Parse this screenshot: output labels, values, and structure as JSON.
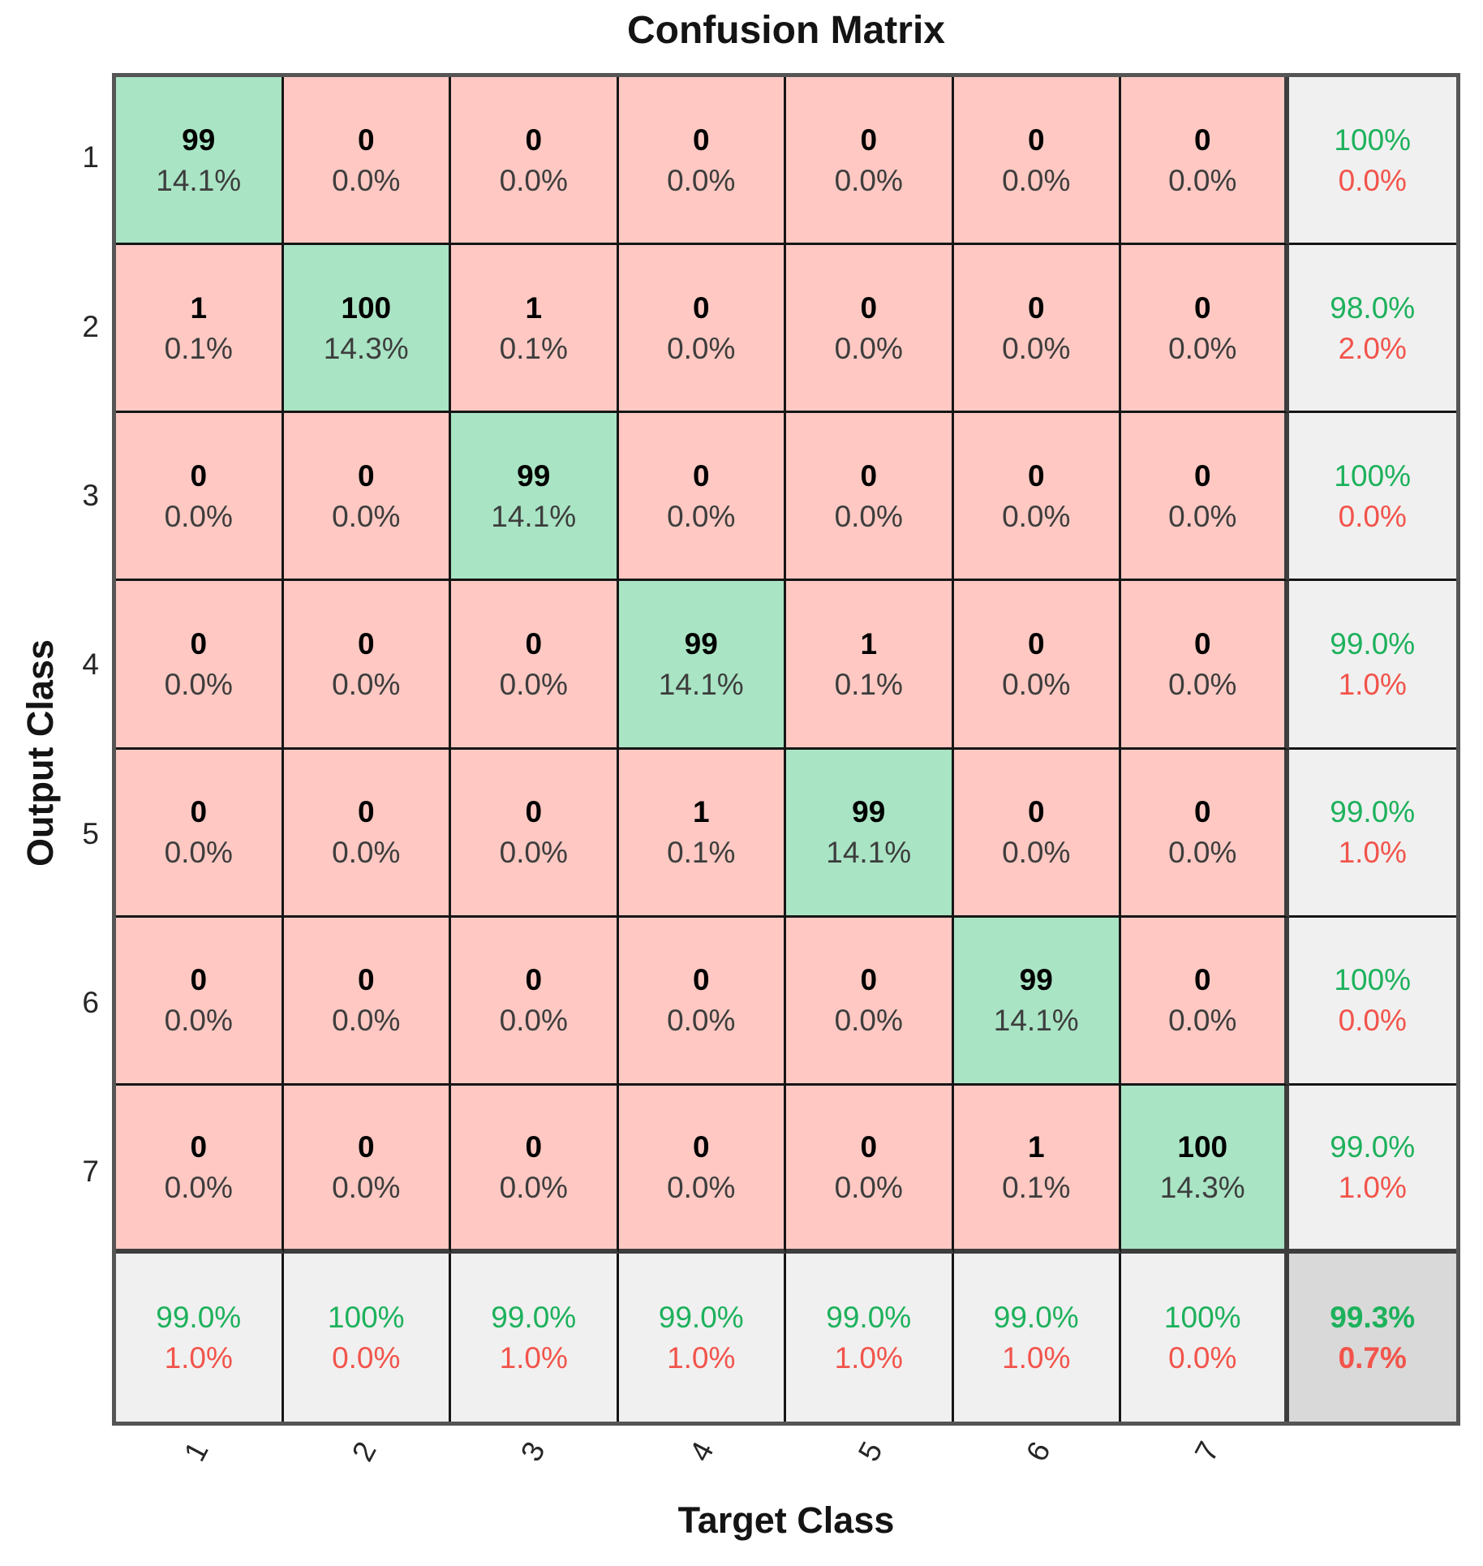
{
  "title": "Confusion Matrix",
  "x_axis": {
    "label": "Target Class",
    "ticks": [
      "1",
      "2",
      "3",
      "4",
      "5",
      "6",
      "7"
    ]
  },
  "y_axis": {
    "label": "Output Class",
    "ticks": [
      "1",
      "2",
      "3",
      "4",
      "5",
      "6",
      "7"
    ]
  },
  "colors": {
    "correct_cell_bg": "#A9E4C4",
    "incorrect_cell_bg": "#FFC8C2",
    "summary_cell_bg": "#F0F0F0",
    "total_cell_bg": "#D9D9D9",
    "good_text": "#1DB15C",
    "bad_text": "#F2544B"
  },
  "matrix": {
    "rows": [
      {
        "tick": "1",
        "cells": [
          {
            "count": "99",
            "pct": "14.1%",
            "correct": true
          },
          {
            "count": "0",
            "pct": "0.0%",
            "correct": false
          },
          {
            "count": "0",
            "pct": "0.0%",
            "correct": false
          },
          {
            "count": "0",
            "pct": "0.0%",
            "correct": false
          },
          {
            "count": "0",
            "pct": "0.0%",
            "correct": false
          },
          {
            "count": "0",
            "pct": "0.0%",
            "correct": false
          },
          {
            "count": "0",
            "pct": "0.0%",
            "correct": false
          }
        ],
        "summary": {
          "good": "100%",
          "bad": "0.0%"
        }
      },
      {
        "tick": "2",
        "cells": [
          {
            "count": "1",
            "pct": "0.1%",
            "correct": false
          },
          {
            "count": "100",
            "pct": "14.3%",
            "correct": true
          },
          {
            "count": "1",
            "pct": "0.1%",
            "correct": false
          },
          {
            "count": "0",
            "pct": "0.0%",
            "correct": false
          },
          {
            "count": "0",
            "pct": "0.0%",
            "correct": false
          },
          {
            "count": "0",
            "pct": "0.0%",
            "correct": false
          },
          {
            "count": "0",
            "pct": "0.0%",
            "correct": false
          }
        ],
        "summary": {
          "good": "98.0%",
          "bad": "2.0%"
        }
      },
      {
        "tick": "3",
        "cells": [
          {
            "count": "0",
            "pct": "0.0%",
            "correct": false
          },
          {
            "count": "0",
            "pct": "0.0%",
            "correct": false
          },
          {
            "count": "99",
            "pct": "14.1%",
            "correct": true
          },
          {
            "count": "0",
            "pct": "0.0%",
            "correct": false
          },
          {
            "count": "0",
            "pct": "0.0%",
            "correct": false
          },
          {
            "count": "0",
            "pct": "0.0%",
            "correct": false
          },
          {
            "count": "0",
            "pct": "0.0%",
            "correct": false
          }
        ],
        "summary": {
          "good": "100%",
          "bad": "0.0%"
        }
      },
      {
        "tick": "4",
        "cells": [
          {
            "count": "0",
            "pct": "0.0%",
            "correct": false
          },
          {
            "count": "0",
            "pct": "0.0%",
            "correct": false
          },
          {
            "count": "0",
            "pct": "0.0%",
            "correct": false
          },
          {
            "count": "99",
            "pct": "14.1%",
            "correct": true
          },
          {
            "count": "1",
            "pct": "0.1%",
            "correct": false
          },
          {
            "count": "0",
            "pct": "0.0%",
            "correct": false
          },
          {
            "count": "0",
            "pct": "0.0%",
            "correct": false
          }
        ],
        "summary": {
          "good": "99.0%",
          "bad": "1.0%"
        }
      },
      {
        "tick": "5",
        "cells": [
          {
            "count": "0",
            "pct": "0.0%",
            "correct": false
          },
          {
            "count": "0",
            "pct": "0.0%",
            "correct": false
          },
          {
            "count": "0",
            "pct": "0.0%",
            "correct": false
          },
          {
            "count": "1",
            "pct": "0.1%",
            "correct": false
          },
          {
            "count": "99",
            "pct": "14.1%",
            "correct": true
          },
          {
            "count": "0",
            "pct": "0.0%",
            "correct": false
          },
          {
            "count": "0",
            "pct": "0.0%",
            "correct": false
          }
        ],
        "summary": {
          "good": "99.0%",
          "bad": "1.0%"
        }
      },
      {
        "tick": "6",
        "cells": [
          {
            "count": "0",
            "pct": "0.0%",
            "correct": false
          },
          {
            "count": "0",
            "pct": "0.0%",
            "correct": false
          },
          {
            "count": "0",
            "pct": "0.0%",
            "correct": false
          },
          {
            "count": "0",
            "pct": "0.0%",
            "correct": false
          },
          {
            "count": "0",
            "pct": "0.0%",
            "correct": false
          },
          {
            "count": "99",
            "pct": "14.1%",
            "correct": true
          },
          {
            "count": "0",
            "pct": "0.0%",
            "correct": false
          }
        ],
        "summary": {
          "good": "100%",
          "bad": "0.0%"
        }
      },
      {
        "tick": "7",
        "cells": [
          {
            "count": "0",
            "pct": "0.0%",
            "correct": false
          },
          {
            "count": "0",
            "pct": "0.0%",
            "correct": false
          },
          {
            "count": "0",
            "pct": "0.0%",
            "correct": false
          },
          {
            "count": "0",
            "pct": "0.0%",
            "correct": false
          },
          {
            "count": "0",
            "pct": "0.0%",
            "correct": false
          },
          {
            "count": "1",
            "pct": "0.1%",
            "correct": false
          },
          {
            "count": "100",
            "pct": "14.3%",
            "correct": true
          }
        ],
        "summary": {
          "good": "99.0%",
          "bad": "1.0%"
        }
      }
    ],
    "col_summaries": [
      {
        "good": "99.0%",
        "bad": "1.0%"
      },
      {
        "good": "100%",
        "bad": "0.0%"
      },
      {
        "good": "99.0%",
        "bad": "1.0%"
      },
      {
        "good": "99.0%",
        "bad": "1.0%"
      },
      {
        "good": "99.0%",
        "bad": "1.0%"
      },
      {
        "good": "99.0%",
        "bad": "1.0%"
      },
      {
        "good": "100%",
        "bad": "0.0%"
      }
    ],
    "total": {
      "good": "99.3%",
      "bad": "0.7%"
    }
  },
  "chart_data": {
    "type": "heatmap",
    "title": "Confusion Matrix",
    "xlabel": "Target Class",
    "ylabel": "Output Class",
    "classes": [
      "1",
      "2",
      "3",
      "4",
      "5",
      "6",
      "7"
    ],
    "counts": [
      [
        99,
        0,
        0,
        0,
        0,
        0,
        0
      ],
      [
        1,
        100,
        1,
        0,
        0,
        0,
        0
      ],
      [
        0,
        0,
        99,
        0,
        0,
        0,
        0
      ],
      [
        0,
        0,
        0,
        99,
        1,
        0,
        0
      ],
      [
        0,
        0,
        0,
        1,
        99,
        0,
        0
      ],
      [
        0,
        0,
        0,
        0,
        0,
        99,
        0
      ],
      [
        0,
        0,
        0,
        0,
        0,
        1,
        100
      ]
    ],
    "cell_percent_of_total": [
      [
        "14.1%",
        "0.0%",
        "0.0%",
        "0.0%",
        "0.0%",
        "0.0%",
        "0.0%"
      ],
      [
        "0.1%",
        "14.3%",
        "0.1%",
        "0.0%",
        "0.0%",
        "0.0%",
        "0.0%"
      ],
      [
        "0.0%",
        "0.0%",
        "14.1%",
        "0.0%",
        "0.0%",
        "0.0%",
        "0.0%"
      ],
      [
        "0.0%",
        "0.0%",
        "0.0%",
        "14.1%",
        "0.1%",
        "0.0%",
        "0.0%"
      ],
      [
        "0.0%",
        "0.0%",
        "0.0%",
        "0.1%",
        "14.1%",
        "0.0%",
        "0.0%"
      ],
      [
        "0.0%",
        "0.0%",
        "0.0%",
        "0.0%",
        "0.0%",
        "14.1%",
        "0.0%"
      ],
      [
        "0.0%",
        "0.0%",
        "0.0%",
        "0.0%",
        "0.0%",
        "0.1%",
        "14.3%"
      ]
    ],
    "row_precision": [
      "100%",
      "98.0%",
      "100%",
      "99.0%",
      "99.0%",
      "100%",
      "99.0%"
    ],
    "row_error": [
      "0.0%",
      "2.0%",
      "0.0%",
      "1.0%",
      "1.0%",
      "0.0%",
      "1.0%"
    ],
    "col_recall": [
      "99.0%",
      "100%",
      "99.0%",
      "99.0%",
      "99.0%",
      "99.0%",
      "100%"
    ],
    "col_error": [
      "1.0%",
      "0.0%",
      "1.0%",
      "1.0%",
      "1.0%",
      "1.0%",
      "0.0%"
    ],
    "overall_accuracy": "99.3%",
    "overall_error": "0.7%",
    "legend_position": "none",
    "grid": true
  }
}
